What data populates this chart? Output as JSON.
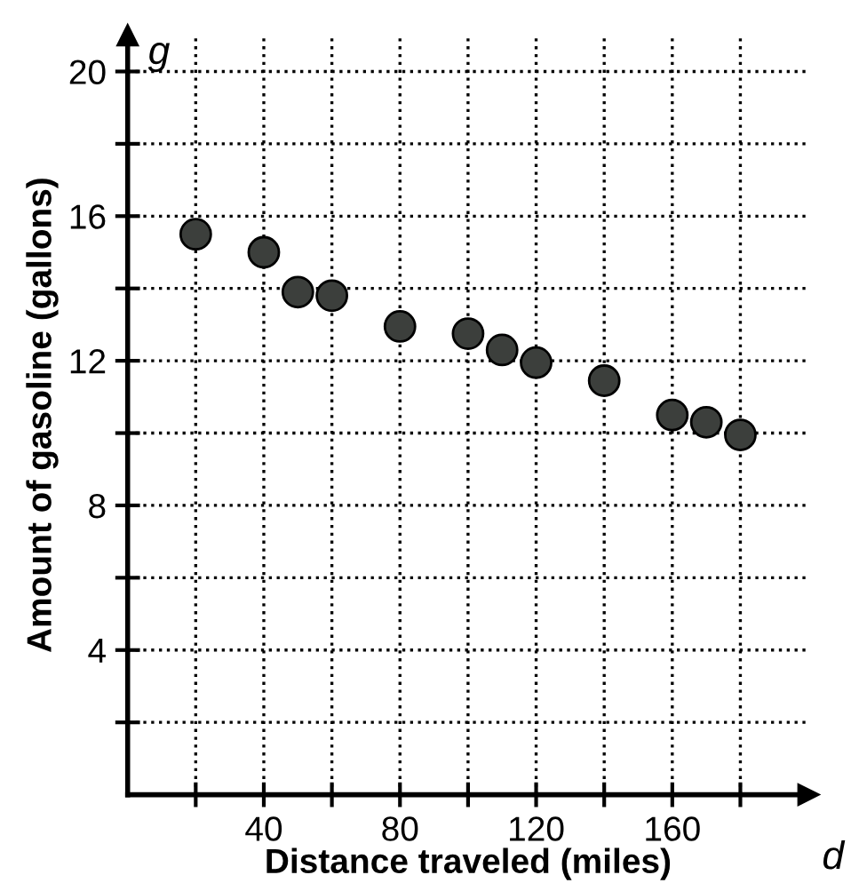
{
  "chart_data": {
    "type": "scatter",
    "xlabel": "Distance traveled (miles)",
    "ylabel": "Amount of gasoline (gallons)",
    "annotations": [
      "g",
      "d"
    ],
    "series": [
      {
        "color": "#3c3f3c",
        "x": [
          20,
          40,
          50,
          60,
          80,
          100,
          110,
          120,
          140,
          160,
          170,
          180
        ],
        "values": [
          15.5,
          15.0,
          13.9,
          13.8,
          12.95,
          12.75,
          12.3,
          11.95,
          11.45,
          10.5,
          10.3,
          9.95
        ]
      }
    ],
    "xlim": [
      0,
      200
    ],
    "ylim": [
      0,
      21
    ],
    "xticks": [
      {
        "value": 20,
        "label": null
      },
      40,
      {
        "value": 60,
        "label": null
      },
      80,
      {
        "value": 100,
        "label": null
      },
      120,
      {
        "value": 140,
        "label": null
      },
      160,
      {
        "value": 180,
        "label": null
      }
    ],
    "yticks": [
      {
        "value": 2,
        "label": null
      },
      4,
      {
        "value": 6,
        "label": null
      },
      8,
      {
        "value": 10,
        "label": null
      },
      12,
      {
        "value": 14,
        "label": null
      },
      16,
      {
        "value": 18,
        "label": null
      },
      20
    ],
    "grid": true,
    "marker": "circle",
    "legend": false
  }
}
